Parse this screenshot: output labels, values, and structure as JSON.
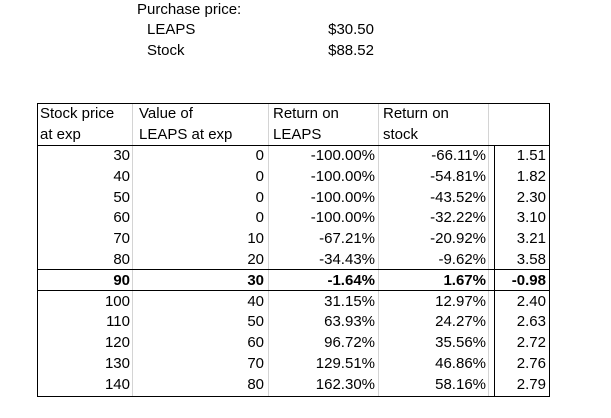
{
  "purchase": {
    "heading": "Purchase price:",
    "leaps_label": "LEAPS",
    "leaps_value": "$30.50",
    "stock_label": "Stock",
    "stock_value": "$88.52"
  },
  "table": {
    "headers": {
      "c1_line1": "Stock price",
      "c1_line2": "at exp",
      "c2_line1": "Value of",
      "c2_line2": "LEAPS at exp",
      "c3_line1": "Return on",
      "c3_line2": "LEAPS",
      "c4_line1": "Return on",
      "c4_line2": "stock",
      "c5_line1": "",
      "c5_line2": ""
    },
    "rows": [
      {
        "price": "30",
        "value": "0",
        "ret_leaps": "-100.00%",
        "ret_stock": "-66.11%",
        "ratio": "1.51",
        "bold": false
      },
      {
        "price": "40",
        "value": "0",
        "ret_leaps": "-100.00%",
        "ret_stock": "-54.81%",
        "ratio": "1.82",
        "bold": false
      },
      {
        "price": "50",
        "value": "0",
        "ret_leaps": "-100.00%",
        "ret_stock": "-43.52%",
        "ratio": "2.30",
        "bold": false
      },
      {
        "price": "60",
        "value": "0",
        "ret_leaps": "-100.00%",
        "ret_stock": "-32.22%",
        "ratio": "3.10",
        "bold": false
      },
      {
        "price": "70",
        "value": "10",
        "ret_leaps": "-67.21%",
        "ret_stock": "-20.92%",
        "ratio": "3.21",
        "bold": false
      },
      {
        "price": "80",
        "value": "20",
        "ret_leaps": "-34.43%",
        "ret_stock": "-9.62%",
        "ratio": "3.58",
        "bold": false
      },
      {
        "price": "90",
        "value": "30",
        "ret_leaps": "-1.64%",
        "ret_stock": "1.67%",
        "ratio": "-0.98",
        "bold": true
      },
      {
        "price": "100",
        "value": "40",
        "ret_leaps": "31.15%",
        "ret_stock": "12.97%",
        "ratio": "2.40",
        "bold": false
      },
      {
        "price": "110",
        "value": "50",
        "ret_leaps": "63.93%",
        "ret_stock": "24.27%",
        "ratio": "2.63",
        "bold": false
      },
      {
        "price": "120",
        "value": "60",
        "ret_leaps": "96.72%",
        "ret_stock": "35.56%",
        "ratio": "2.72",
        "bold": false
      },
      {
        "price": "130",
        "value": "70",
        "ret_leaps": "129.51%",
        "ret_stock": "46.86%",
        "ratio": "2.76",
        "bold": false
      },
      {
        "price": "140",
        "value": "80",
        "ret_leaps": "162.30%",
        "ret_stock": "58.16%",
        "ratio": "2.79",
        "bold": false
      }
    ]
  }
}
